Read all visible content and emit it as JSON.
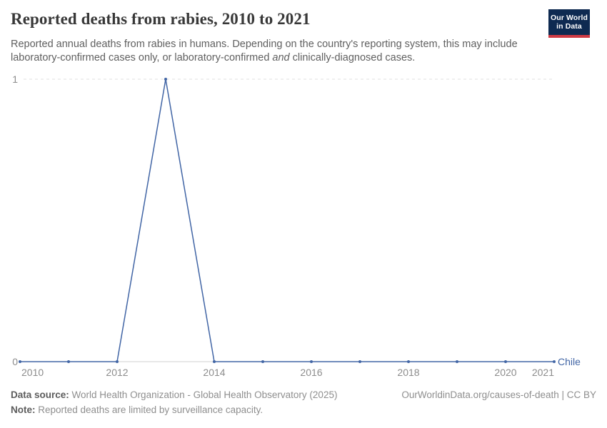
{
  "header": {
    "title": "Reported deaths from rabies, 2010 to 2021",
    "subtitle_part1": "Reported annual deaths from rabies in humans. Depending on the country's reporting system, this may include laboratory-confirmed cases only, or laboratory-confirmed ",
    "subtitle_italic": "and",
    "subtitle_part2": " clinically-diagnosed cases.",
    "logo_line1": "Our World",
    "logo_line2": "in Data"
  },
  "chart_data": {
    "type": "line",
    "title": "Reported deaths from rabies, 2010 to 2021",
    "x": [
      2010,
      2011,
      2012,
      2013,
      2014,
      2015,
      2016,
      2017,
      2018,
      2019,
      2020,
      2021
    ],
    "series": [
      {
        "name": "Chile",
        "values": [
          0,
          0,
          0,
          1,
          0,
          0,
          0,
          0,
          0,
          0,
          0,
          0
        ],
        "color": "#4165a5"
      }
    ],
    "x_ticks": [
      2010,
      2012,
      2014,
      2016,
      2018,
      2020,
      2021
    ],
    "x_tick_labels": [
      "2010",
      "2012",
      "2014",
      "2016",
      "2018",
      "2020",
      "2021"
    ],
    "y_ticks": [
      0,
      1
    ],
    "xlim": [
      2010,
      2021
    ],
    "ylim": [
      0,
      1
    ],
    "grid": "horizontal dashed gridline at y=1, solid light zero line",
    "legend_position": "entity label right of line end",
    "xlabel": "",
    "ylabel": ""
  },
  "footer": {
    "datasource_label": "Data source:",
    "datasource_value": " World Health Organization - Global Health Observatory (2025)",
    "note_label": "Note:",
    "note_value": " Reported deaths are limited by surveillance capacity.",
    "credit": "OurWorldinData.org/causes-of-death | CC BY"
  },
  "colors": {
    "line": "#4165a5",
    "entity_label": "#4165a5",
    "axis_text": "#8c8c8c",
    "gridline": "#e2e2e2",
    "zero_line": "#cfcfcf",
    "title_text": "#383838",
    "subtitle_text": "#5f5f5f",
    "logo_background": "#0e2a51",
    "logo_accent": "#ce3a44"
  }
}
